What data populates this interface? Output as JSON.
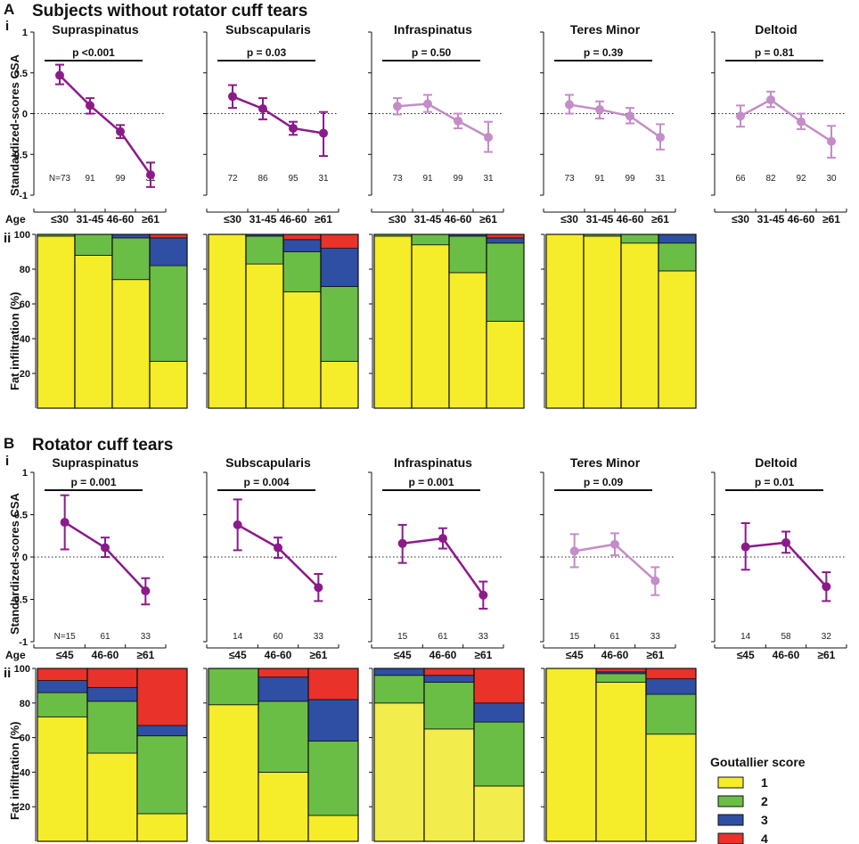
{
  "colors": {
    "line_strong": "#8B1A8B",
    "line_light": "#C48CC8",
    "grade1": "#F5EC2A",
    "grade1_light": "#F2EC4C",
    "grade2": "#6BBE45",
    "grade3": "#2E4FA3",
    "grade4": "#E8322A"
  },
  "panel_A": {
    "letter": "A",
    "title": "Subjects without rotator cuff tears",
    "sub_i": "i",
    "sub_ii": "ii"
  },
  "panel_B": {
    "letter": "B",
    "title": "Rotator cuff tears",
    "sub_i": "i",
    "sub_ii": "ii"
  },
  "y_axis_labels": {
    "line": "Standardized-scores CSA",
    "bar": "Fat infiltration (%)"
  },
  "age_label": "Age",
  "legend": {
    "title": "Goutallier score",
    "items": [
      "1",
      "2",
      "3",
      "4"
    ]
  },
  "chart_data": [
    {
      "id": "A-i-supraspinatus",
      "type": "line",
      "title": "Supraspinatus",
      "p_value": "p <0.001",
      "significant": true,
      "categories": [
        "≤30",
        "31-45",
        "46-60",
        "≥61"
      ],
      "n_labels": [
        "N=73",
        "91",
        "99",
        "31"
      ],
      "values": [
        0.47,
        0.1,
        -0.22,
        -0.75
      ],
      "error_low": [
        0.36,
        0.0,
        -0.3,
        -0.9
      ],
      "error_high": [
        0.6,
        0.19,
        -0.14,
        -0.6
      ],
      "ylabel": "Standardized-scores CSA",
      "ylim": [
        -1,
        1
      ],
      "yticks": [
        "1",
        "0.5",
        "0",
        "-0.5",
        "-1"
      ],
      "reference_line": 0
    },
    {
      "id": "A-i-subscapularis",
      "type": "line",
      "title": "Subscapularis",
      "p_value": "p = 0.03",
      "significant": true,
      "categories": [
        "≤30",
        "31-45",
        "46-60",
        "≥61"
      ],
      "n_labels": [
        "72",
        "86",
        "95",
        "31"
      ],
      "values": [
        0.21,
        0.06,
        -0.18,
        -0.24
      ],
      "error_low": [
        0.07,
        -0.07,
        -0.26,
        -0.52
      ],
      "error_high": [
        0.35,
        0.19,
        -0.1,
        0.02
      ],
      "ylim": [
        -1,
        1
      ],
      "reference_line": 0
    },
    {
      "id": "A-i-infraspinatus",
      "type": "line",
      "title": "Infraspinatus",
      "p_value": "p = 0.50",
      "significant": false,
      "categories": [
        "≤30",
        "31-45",
        "46-60",
        "≥61"
      ],
      "n_labels": [
        "73",
        "91",
        "99",
        "31"
      ],
      "values": [
        0.09,
        0.12,
        -0.09,
        -0.29
      ],
      "error_low": [
        -0.01,
        0.02,
        -0.18,
        -0.47
      ],
      "error_high": [
        0.19,
        0.23,
        0.0,
        -0.1
      ],
      "ylim": [
        -1,
        1
      ],
      "reference_line": 0
    },
    {
      "id": "A-i-teres-minor",
      "type": "line",
      "title": "Teres Minor",
      "p_value": "p = 0.39",
      "significant": false,
      "categories": [
        "≤30",
        "31-45",
        "46-60",
        "≥61"
      ],
      "n_labels": [
        "73",
        "91",
        "99",
        "31"
      ],
      "values": [
        0.11,
        0.05,
        -0.03,
        -0.29
      ],
      "error_low": [
        0.0,
        -0.06,
        -0.12,
        -0.44
      ],
      "error_high": [
        0.23,
        0.15,
        0.07,
        -0.13
      ],
      "ylim": [
        -1,
        1
      ],
      "reference_line": 0
    },
    {
      "id": "A-i-deltoid",
      "type": "line",
      "title": "Deltoid",
      "p_value": "p = 0.81",
      "significant": false,
      "categories": [
        "≤30",
        "31-45",
        "46-60",
        "≥61"
      ],
      "n_labels": [
        "66",
        "82",
        "92",
        "30"
      ],
      "values": [
        -0.03,
        0.17,
        -0.1,
        -0.34
      ],
      "error_low": [
        -0.16,
        0.08,
        -0.19,
        -0.54
      ],
      "error_high": [
        0.1,
        0.27,
        0.0,
        -0.15
      ],
      "ylim": [
        -1,
        1
      ],
      "reference_line": 0
    },
    {
      "id": "A-ii-supraspinatus",
      "type": "bar",
      "stacked": true,
      "categories": [
        "≤30",
        "31-45",
        "46-60",
        "≥61"
      ],
      "series": [
        {
          "name": "1",
          "values": [
            99,
            88,
            74,
            27
          ]
        },
        {
          "name": "2",
          "values": [
            1,
            12,
            24,
            55
          ]
        },
        {
          "name": "3",
          "values": [
            0,
            0,
            2,
            16
          ]
        },
        {
          "name": "4",
          "values": [
            0,
            0,
            0,
            2
          ]
        }
      ],
      "ylabel": "Fat infiltration (%)",
      "ylim": [
        0,
        100
      ],
      "yticks": [
        "100",
        "80",
        "60",
        "40",
        "20"
      ]
    },
    {
      "id": "A-ii-subscapularis",
      "type": "bar",
      "stacked": true,
      "categories": [
        "≤30",
        "31-45",
        "46-60",
        "≥61"
      ],
      "series": [
        {
          "name": "1",
          "values": [
            100,
            83,
            67,
            27
          ]
        },
        {
          "name": "2",
          "values": [
            0,
            16,
            23,
            43
          ]
        },
        {
          "name": "3",
          "values": [
            0,
            1,
            7,
            22
          ]
        },
        {
          "name": "4",
          "values": [
            0,
            0,
            3,
            8
          ]
        }
      ],
      "ylim": [
        0,
        100
      ]
    },
    {
      "id": "A-ii-infraspinatus",
      "type": "bar",
      "stacked": true,
      "categories": [
        "≤30",
        "31-45",
        "46-60",
        "≥61"
      ],
      "series": [
        {
          "name": "1",
          "values": [
            99,
            94,
            78,
            50
          ]
        },
        {
          "name": "2",
          "values": [
            1,
            6,
            21,
            45
          ]
        },
        {
          "name": "3",
          "values": [
            0,
            0,
            1,
            3
          ]
        },
        {
          "name": "4",
          "values": [
            0,
            0,
            0,
            2
          ]
        }
      ],
      "ylim": [
        0,
        100
      ]
    },
    {
      "id": "A-ii-teres-minor",
      "type": "bar",
      "stacked": true,
      "categories": [
        "≤30",
        "31-45",
        "46-60",
        "≥61"
      ],
      "series": [
        {
          "name": "1",
          "values": [
            100,
            99,
            95,
            79
          ]
        },
        {
          "name": "2",
          "values": [
            0,
            1,
            5,
            16
          ]
        },
        {
          "name": "3",
          "values": [
            0,
            0,
            0,
            5
          ]
        },
        {
          "name": "4",
          "values": [
            0,
            0,
            0,
            0
          ]
        }
      ],
      "ylim": [
        0,
        100
      ]
    },
    {
      "id": "B-i-supraspinatus",
      "type": "line",
      "title": "Supraspinatus",
      "p_value": "p = 0.001",
      "significant": true,
      "categories": [
        "≤45",
        "46-60",
        "≥61"
      ],
      "n_labels": [
        "N=15",
        "61",
        "33"
      ],
      "values": [
        0.41,
        0.11,
        -0.4
      ],
      "error_low": [
        0.09,
        0.0,
        -0.56
      ],
      "error_high": [
        0.73,
        0.23,
        -0.25
      ],
      "ylabel": "Standardized-scores CSA",
      "ylim": [
        -1,
        1
      ],
      "yticks": [
        "1",
        "0.5",
        "0",
        "-0.5",
        "-1"
      ],
      "reference_line": 0
    },
    {
      "id": "B-i-subscapularis",
      "type": "line",
      "title": "Subscapularis",
      "p_value": "p = 0.004",
      "significant": true,
      "categories": [
        "≤45",
        "46-60",
        "≥61"
      ],
      "n_labels": [
        "14",
        "60",
        "33"
      ],
      "values": [
        0.38,
        0.11,
        -0.36
      ],
      "error_low": [
        0.08,
        -0.01,
        -0.52
      ],
      "error_high": [
        0.68,
        0.23,
        -0.2
      ],
      "ylim": [
        -1,
        1
      ],
      "reference_line": 0
    },
    {
      "id": "B-i-infraspinatus",
      "type": "line",
      "title": "Infraspinatus",
      "p_value": "p = 0.001",
      "significant": true,
      "categories": [
        "≤45",
        "46-60",
        "≥61"
      ],
      "n_labels": [
        "15",
        "61",
        "33"
      ],
      "values": [
        0.16,
        0.22,
        -0.45
      ],
      "error_low": [
        -0.07,
        0.1,
        -0.61
      ],
      "error_high": [
        0.38,
        0.34,
        -0.29
      ],
      "ylim": [
        -1,
        1
      ],
      "reference_line": 0
    },
    {
      "id": "B-i-teres-minor",
      "type": "line",
      "title": "Teres Minor",
      "p_value": "p = 0.09",
      "significant": false,
      "categories": [
        "≤45",
        "46-60",
        "≥61"
      ],
      "n_labels": [
        "15",
        "61",
        "33"
      ],
      "values": [
        0.07,
        0.15,
        -0.28
      ],
      "error_low": [
        -0.12,
        0.02,
        -0.45
      ],
      "error_high": [
        0.27,
        0.28,
        -0.12
      ],
      "ylim": [
        -1,
        1
      ],
      "reference_line": 0
    },
    {
      "id": "B-i-deltoid",
      "type": "line",
      "title": "Deltoid",
      "p_value": "p = 0.01",
      "significant": true,
      "categories": [
        "≤45",
        "46-60",
        "≥61"
      ],
      "n_labels": [
        "14",
        "58",
        "32"
      ],
      "values": [
        0.12,
        0.17,
        -0.35
      ],
      "error_low": [
        -0.15,
        0.05,
        -0.52
      ],
      "error_high": [
        0.4,
        0.3,
        -0.18
      ],
      "ylim": [
        -1,
        1
      ],
      "reference_line": 0
    },
    {
      "id": "B-ii-supraspinatus",
      "type": "bar",
      "stacked": true,
      "categories": [
        "≤45",
        "46-60",
        "≥61"
      ],
      "series": [
        {
          "name": "1",
          "values": [
            72,
            51,
            16
          ]
        },
        {
          "name": "2",
          "values": [
            14,
            30,
            45
          ]
        },
        {
          "name": "3",
          "values": [
            7,
            8,
            6
          ]
        },
        {
          "name": "4",
          "values": [
            7,
            11,
            33
          ]
        }
      ],
      "ylabel": "Fat infiltration (%)",
      "ylim": [
        0,
        100
      ],
      "yticks": [
        "100",
        "80",
        "60",
        "40",
        "20"
      ]
    },
    {
      "id": "B-ii-subscapularis",
      "type": "bar",
      "stacked": true,
      "categories": [
        "≤45",
        "46-60",
        "≥61"
      ],
      "series": [
        {
          "name": "1",
          "values": [
            79,
            40,
            15
          ]
        },
        {
          "name": "2",
          "values": [
            21,
            41,
            43
          ]
        },
        {
          "name": "3",
          "values": [
            0,
            14,
            24
          ]
        },
        {
          "name": "4",
          "values": [
            0,
            5,
            18
          ]
        }
      ],
      "ylim": [
        0,
        100
      ]
    },
    {
      "id": "B-ii-infraspinatus",
      "type": "bar",
      "stacked": true,
      "categories": [
        "≤45",
        "46-60",
        "≥61"
      ],
      "series": [
        {
          "name": "1",
          "values": [
            80,
            65,
            32
          ]
        },
        {
          "name": "2",
          "values": [
            16,
            27,
            37
          ]
        },
        {
          "name": "3",
          "values": [
            4,
            4,
            11
          ]
        },
        {
          "name": "4",
          "values": [
            0,
            4,
            20
          ]
        }
      ],
      "ylim": [
        0,
        100
      ]
    },
    {
      "id": "B-ii-teres-minor",
      "type": "bar",
      "stacked": true,
      "categories": [
        "≤45",
        "46-60",
        "≥61"
      ],
      "series": [
        {
          "name": "1",
          "values": [
            100,
            92,
            62
          ]
        },
        {
          "name": "2",
          "values": [
            0,
            5,
            23
          ]
        },
        {
          "name": "3",
          "values": [
            0,
            1,
            9
          ]
        },
        {
          "name": "4",
          "values": [
            0,
            2,
            6
          ]
        }
      ],
      "ylim": [
        0,
        100
      ]
    }
  ]
}
